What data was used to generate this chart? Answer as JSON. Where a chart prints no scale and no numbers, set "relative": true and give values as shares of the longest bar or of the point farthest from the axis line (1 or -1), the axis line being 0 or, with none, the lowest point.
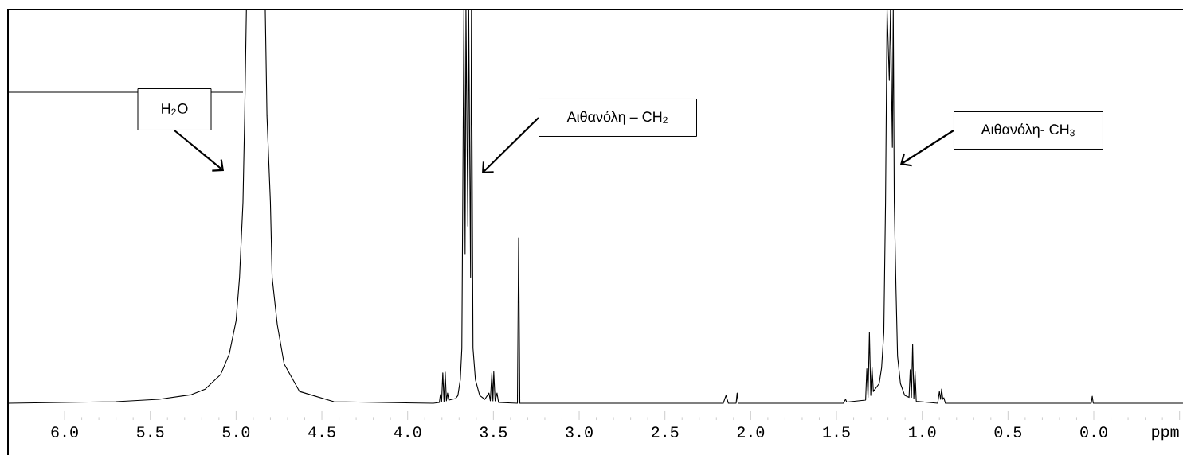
{
  "chart_data": {
    "type": "line",
    "relative": true,
    "xlabel": "ppm",
    "xlim": [
      6.33,
      -0.52
    ],
    "xticks": [
      {
        "value": 6.0,
        "label": "6.0"
      },
      {
        "value": 5.5,
        "label": "5.5"
      },
      {
        "value": 5.0,
        "label": "5.0"
      },
      {
        "value": 4.5,
        "label": "4.5"
      },
      {
        "value": 4.0,
        "label": "4.0"
      },
      {
        "value": 3.5,
        "label": "3.5"
      },
      {
        "value": 3.0,
        "label": "3.0"
      },
      {
        "value": 2.5,
        "label": "2.5"
      },
      {
        "value": 2.0,
        "label": "2.0"
      },
      {
        "value": 1.5,
        "label": "1.5"
      },
      {
        "value": 1.0,
        "label": "1.0"
      },
      {
        "value": 0.5,
        "label": "0.5"
      },
      {
        "value": 0.0,
        "label": "0.0"
      },
      {
        "value": -0.5,
        "label": null
      }
    ],
    "series": [
      {
        "color": "#000000",
        "x": [
          6.33,
          5.7,
          5.45,
          5.26,
          5.18,
          5.09,
          5.04,
          5.0,
          4.98,
          4.96,
          4.95,
          4.94,
          4.83,
          4.82,
          4.8,
          4.79,
          4.76,
          4.72,
          4.63,
          4.43,
          3.85,
          3.815,
          3.809,
          3.802,
          3.795,
          3.788,
          3.781,
          3.774,
          3.767,
          3.76,
          3.72,
          3.707,
          3.693,
          3.684,
          3.672,
          3.665,
          3.66,
          3.649,
          3.644,
          3.633,
          3.628,
          3.619,
          3.605,
          3.58,
          3.55,
          3.526,
          3.518,
          3.509,
          3.503,
          3.498,
          3.49,
          3.479,
          3.47,
          3.36,
          3.353,
          3.346,
          2.16,
          2.144,
          2.13,
          2.085,
          2.079,
          2.073,
          1.46,
          1.447,
          1.44,
          1.33,
          1.323,
          1.316,
          1.308,
          1.3,
          1.293,
          1.285,
          1.251,
          1.237,
          1.224,
          1.214,
          1.205,
          1.192,
          1.185,
          1.174,
          1.169,
          1.163,
          1.153,
          1.144,
          1.127,
          1.102,
          1.077,
          1.07,
          1.063,
          1.056,
          1.049,
          1.042,
          1.035,
          0.91,
          0.9,
          0.893,
          0.887,
          0.88,
          0.874,
          0.865,
          0.015,
          0.009,
          0.003,
          -0.52
        ],
        "values": [
          0,
          0.004,
          0.01,
          0.022,
          0.036,
          0.073,
          0.125,
          0.21,
          0.32,
          0.51,
          0.73,
          1,
          1,
          0.73,
          0.51,
          0.32,
          0.2,
          0.1,
          0.03,
          0.004,
          0,
          0.002,
          0.022,
          0.004,
          0.077,
          0.004,
          0.079,
          0.006,
          0.026,
          0.008,
          0.012,
          0.02,
          0.06,
          0.14,
          1,
          0.38,
          1,
          0.45,
          1,
          0.32,
          1,
          0.14,
          0.06,
          0.02,
          0.01,
          0.026,
          0.006,
          0.077,
          0.006,
          0.08,
          0.006,
          0.026,
          0.002,
          0,
          0.42,
          0,
          0,
          0.02,
          0,
          0,
          0.026,
          0,
          0,
          0.01,
          0.003,
          0.008,
          0.088,
          0.015,
          0.18,
          0.02,
          0.093,
          0.03,
          0.05,
          0.09,
          0.18,
          0.51,
          1,
          0.82,
          1,
          0.65,
          1,
          0.51,
          0.29,
          0.12,
          0.05,
          0.02,
          0.015,
          0.085,
          0.015,
          0.15,
          0.012,
          0.08,
          0.005,
          0,
          0.03,
          0.01,
          0.036,
          0.01,
          0.014,
          0,
          0,
          0.018,
          0,
          0
        ]
      },
      {
        "color": "#000000",
        "x": [
          6.33,
          4.96
        ],
        "values": [
          0.79,
          0.79
        ]
      }
    ],
    "annotations": [
      "H$_{2}$O",
      "Αιθανόλη – CH$_{2}$",
      "Αιθανόλη- CH$_{3}$"
    ]
  }
}
